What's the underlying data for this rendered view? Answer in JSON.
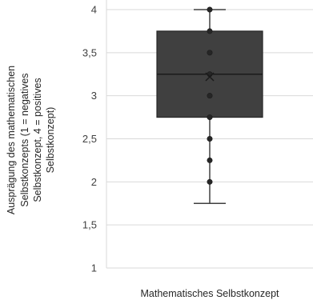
{
  "chart_data": {
    "type": "box",
    "title": "",
    "categories": [
      "Mathematisches Selbstkonzept"
    ],
    "xlabel": "Mathematisches Selbstkonzept",
    "ylabel_lines": [
      "Ausprägung des mathematischen",
      "Selbstkonzepts (1 = negatives",
      "Selbstkonzept, 4 = positives",
      "Selbstkonzept)"
    ],
    "ylim": [
      1,
      4
    ],
    "yticks": [
      1,
      1.5,
      2,
      2.5,
      3,
      3.5,
      4
    ],
    "ytick_labels": [
      "1",
      "1,5",
      "2",
      "2,5",
      "3",
      "3,5",
      "4"
    ],
    "grid": true,
    "legend": "none",
    "box": {
      "whisker_low": 1.75,
      "q1": 2.75,
      "median": 3.25,
      "q3": 3.75,
      "whisker_high": 4,
      "mean": 3.22
    },
    "points": [
      4,
      3.75,
      3.5,
      3.25,
      3,
      2.75,
      2.5,
      2.25,
      2
    ],
    "colors": {
      "box_fill": "#404040",
      "box_edge": "#262626",
      "whisker": "#404040",
      "points": "#262626",
      "gridline": "#d9d9d9"
    }
  }
}
